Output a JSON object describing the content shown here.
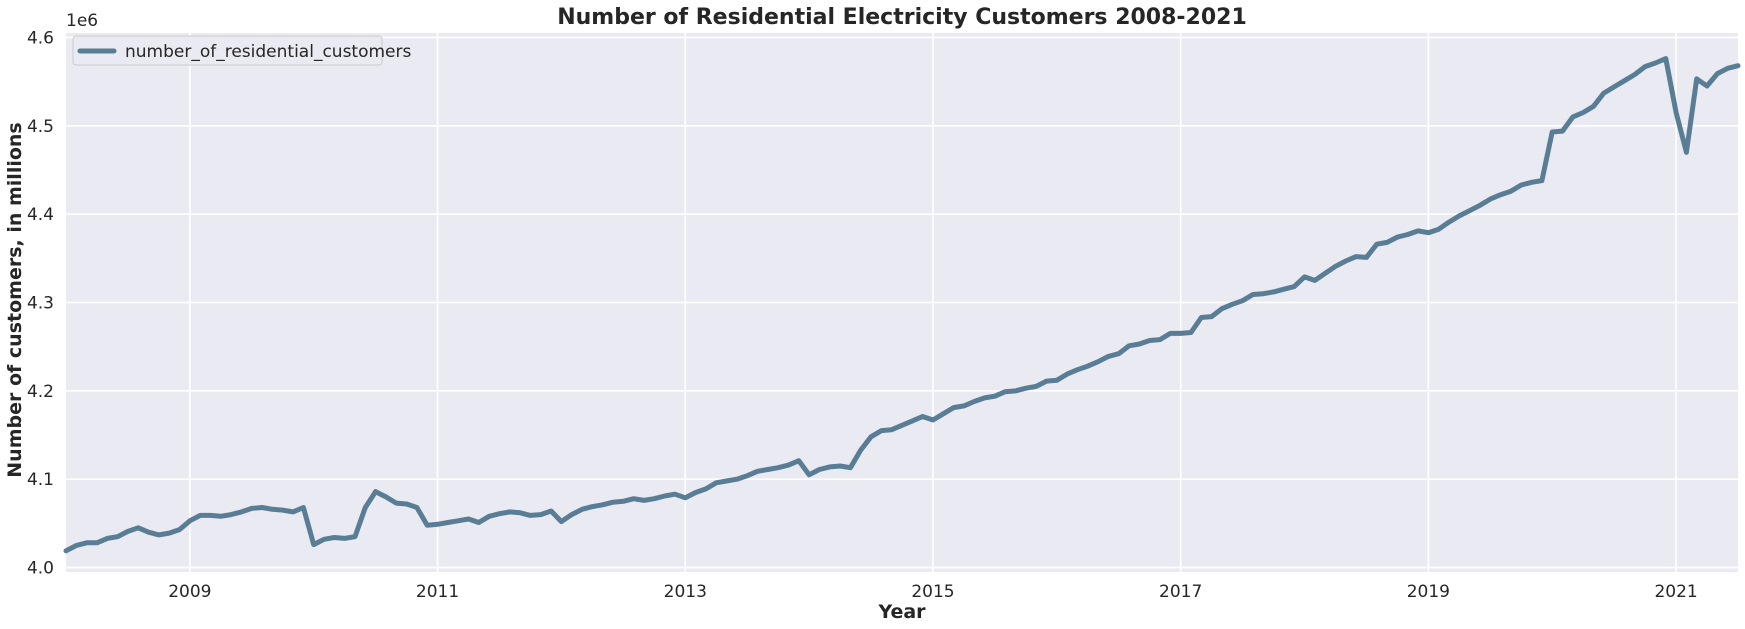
{
  "chart_data": {
    "type": "line",
    "title": "Number of Residential Electricity Customers 2008-2021",
    "xlabel": "Year",
    "ylabel": "Number of customers, in millions",
    "y_offset_label": "1e6",
    "x_tick_labels": [
      "2009",
      "2011",
      "2013",
      "2015",
      "2017",
      "2019",
      "2021"
    ],
    "x_ticks": [
      2009,
      2011,
      2013,
      2015,
      2017,
      2019,
      2021
    ],
    "y_tick_labels": [
      "4.0",
      "4.1",
      "4.2",
      "4.3",
      "4.4",
      "4.5",
      "4.6"
    ],
    "y_ticks": [
      4.0,
      4.1,
      4.2,
      4.3,
      4.4,
      4.5,
      4.6
    ],
    "xlim": [
      2008.0,
      2021.5
    ],
    "ylim": [
      3.995,
      4.605
    ],
    "grid": true,
    "legend_position": "top-left",
    "colors": {
      "background": "#eaeaf2",
      "grid": "#ffffff",
      "line": "#5a7d96"
    },
    "series": [
      {
        "name": "number_of_residential_customers",
        "x": [
          2008.0,
          2008.0833,
          2008.1667,
          2008.25,
          2008.3333,
          2008.4167,
          2008.5,
          2008.5833,
          2008.6667,
          2008.75,
          2008.8333,
          2008.9167,
          2009.0,
          2009.0833,
          2009.1667,
          2009.25,
          2009.3333,
          2009.4167,
          2009.5,
          2009.5833,
          2009.6667,
          2009.75,
          2009.8333,
          2009.9167,
          2010.0,
          2010.0833,
          2010.1667,
          2010.25,
          2010.3333,
          2010.4167,
          2010.5,
          2010.5833,
          2010.6667,
          2010.75,
          2010.8333,
          2010.9167,
          2011.0,
          2011.0833,
          2011.1667,
          2011.25,
          2011.3333,
          2011.4167,
          2011.5,
          2011.5833,
          2011.6667,
          2011.75,
          2011.8333,
          2011.9167,
          2012.0,
          2012.0833,
          2012.1667,
          2012.25,
          2012.3333,
          2012.4167,
          2012.5,
          2012.5833,
          2012.6667,
          2012.75,
          2012.8333,
          2012.9167,
          2013.0,
          2013.0833,
          2013.1667,
          2013.25,
          2013.3333,
          2013.4167,
          2013.5,
          2013.5833,
          2013.6667,
          2013.75,
          2013.8333,
          2013.9167,
          2014.0,
          2014.0833,
          2014.1667,
          2014.25,
          2014.3333,
          2014.4167,
          2014.5,
          2014.5833,
          2014.6667,
          2014.75,
          2014.8333,
          2014.9167,
          2015.0,
          2015.0833,
          2015.1667,
          2015.25,
          2015.3333,
          2015.4167,
          2015.5,
          2015.5833,
          2015.6667,
          2015.75,
          2015.8333,
          2015.9167,
          2016.0,
          2016.0833,
          2016.1667,
          2016.25,
          2016.3333,
          2016.4167,
          2016.5,
          2016.5833,
          2016.6667,
          2016.75,
          2016.8333,
          2016.9167,
          2017.0,
          2017.0833,
          2017.1667,
          2017.25,
          2017.3333,
          2017.4167,
          2017.5,
          2017.5833,
          2017.6667,
          2017.75,
          2017.8333,
          2017.9167,
          2018.0,
          2018.0833,
          2018.1667,
          2018.25,
          2018.3333,
          2018.4167,
          2018.5,
          2018.5833,
          2018.6667,
          2018.75,
          2018.8333,
          2018.9167,
          2019.0,
          2019.0833,
          2019.1667,
          2019.25,
          2019.3333,
          2019.4167,
          2019.5,
          2019.5833,
          2019.6667,
          2019.75,
          2019.8333,
          2019.9167,
          2020.0,
          2020.0833,
          2020.1667,
          2020.25,
          2020.3333,
          2020.4167,
          2020.5,
          2020.5833,
          2020.6667,
          2020.75,
          2020.8333,
          2020.9167,
          2021.0,
          2021.0833,
          2021.1667,
          2021.25,
          2021.3333,
          2021.4167,
          2021.5
        ],
        "values": [
          4.019,
          4.025,
          4.028,
          4.028,
          4.033,
          4.035,
          4.041,
          4.045,
          4.04,
          4.037,
          4.039,
          4.043,
          4.053,
          4.059,
          4.059,
          4.058,
          4.06,
          4.063,
          4.067,
          4.068,
          4.066,
          4.065,
          4.063,
          4.068,
          4.026,
          4.032,
          4.034,
          4.033,
          4.035,
          4.068,
          4.086,
          4.08,
          4.073,
          4.072,
          4.068,
          4.048,
          4.049,
          4.051,
          4.053,
          4.055,
          4.051,
          4.058,
          4.061,
          4.063,
          4.062,
          4.059,
          4.06,
          4.064,
          4.052,
          4.06,
          4.066,
          4.069,
          4.071,
          4.074,
          4.075,
          4.078,
          4.076,
          4.078,
          4.081,
          4.083,
          4.079,
          4.085,
          4.089,
          4.096,
          4.098,
          4.1,
          4.104,
          4.109,
          4.111,
          4.113,
          4.116,
          4.121,
          4.105,
          4.111,
          4.114,
          4.115,
          4.113,
          4.133,
          4.148,
          4.155,
          4.156,
          4.161,
          4.166,
          4.171,
          4.167,
          4.174,
          4.181,
          4.183,
          4.188,
          4.192,
          4.194,
          4.199,
          4.2,
          4.203,
          4.205,
          4.211,
          4.212,
          4.219,
          4.224,
          4.228,
          4.233,
          4.239,
          4.242,
          4.251,
          4.253,
          4.257,
          4.258,
          4.265,
          4.265,
          4.266,
          4.283,
          4.284,
          4.293,
          4.298,
          4.302,
          4.309,
          4.31,
          4.312,
          4.315,
          4.318,
          4.329,
          4.325,
          4.333,
          4.341,
          4.347,
          4.352,
          4.351,
          4.366,
          4.368,
          4.374,
          4.377,
          4.381,
          4.379,
          4.383,
          4.391,
          4.398,
          4.404,
          4.41,
          4.417,
          4.422,
          4.426,
          4.433,
          4.436,
          4.438,
          4.493,
          4.494,
          4.51,
          4.515,
          4.522,
          4.537,
          4.544,
          4.551,
          4.558,
          4.567,
          4.571,
          4.576,
          4.515,
          4.47,
          4.553,
          4.545,
          4.559,
          4.565,
          4.568
        ]
      }
    ]
  }
}
